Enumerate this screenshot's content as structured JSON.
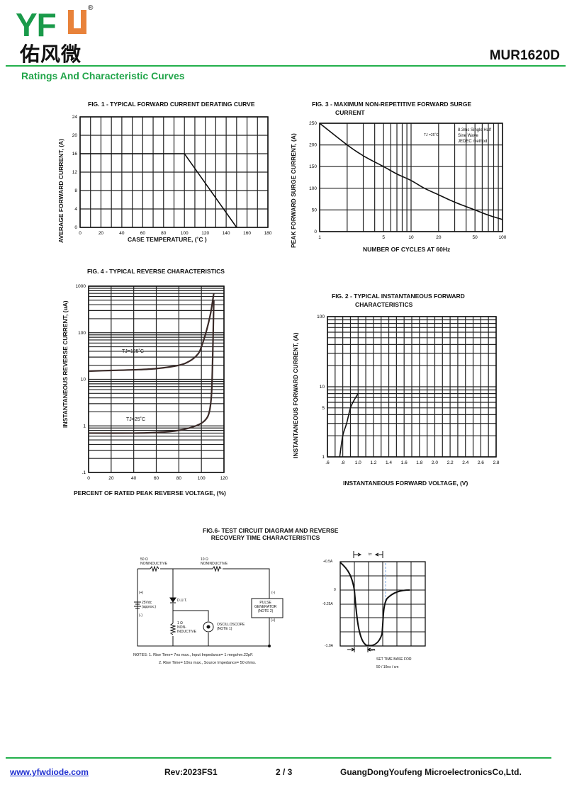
{
  "header": {
    "logo_text": "YFW",
    "logo_cn": "佑风微",
    "registered": "®",
    "part_number": "MUR1620D",
    "section_title": "Ratings And Characteristic Curves",
    "brand_colors": {
      "green": "#1a9a4a",
      "orange": "#e8823a",
      "rule": "#22b04b"
    }
  },
  "chart_data": [
    {
      "id": "fig1",
      "type": "line",
      "title": "FIG. 1 - TYPICAL FORWARD CURRENT DERATING CURVE",
      "xlabel": "CASE TEMPERATURE, (˚C )",
      "ylabel": "AVERAGE FORWARD CURRENT, (A)",
      "xlim": [
        0,
        180
      ],
      "ylim": [
        0,
        24
      ],
      "xscale": "linear",
      "yscale": "linear",
      "grid": true,
      "x_ticks": [
        "0",
        "20",
        "40",
        "60",
        "80",
        "100",
        "120",
        "140",
        "160",
        "180"
      ],
      "y_ticks": [
        "0",
        "4",
        "8",
        "12",
        "16",
        "20",
        "24"
      ],
      "series": [
        {
          "x": [
            0,
            100,
            150
          ],
          "y": [
            16,
            16,
            0
          ]
        }
      ]
    },
    {
      "id": "fig3",
      "type": "line",
      "title": "FIG. 3 - MAXIMUM NON-REPETITIVE FORWARD SURGE\n              CURRENT",
      "xlabel": "NUMBER OF CYCLES AT 60Hz",
      "ylabel": "PEAK FORWARD SURGE CURRENT, (A)",
      "xlim": [
        1,
        100
      ],
      "ylim": [
        0,
        250
      ],
      "xscale": "log",
      "yscale": "linear",
      "grid": true,
      "x_ticks": [
        "1",
        "5",
        "10",
        "20",
        "50",
        "100"
      ],
      "y_ticks": [
        "0",
        "50",
        "100",
        "150",
        "200",
        "250"
      ],
      "annotations": [
        "TJ =25˚C",
        "8.3ms Single Half\nSine Wave\nJEDEC method"
      ],
      "series": [
        {
          "x": [
            1,
            2,
            3,
            5,
            7,
            10,
            14,
            20,
            30,
            50,
            70,
            100
          ],
          "y": [
            250,
            200,
            175,
            150,
            133,
            118,
            100,
            85,
            68,
            50,
            38,
            28
          ]
        }
      ]
    },
    {
      "id": "fig4",
      "type": "line",
      "title": "FIG. 4 - TYPICAL REVERSE CHARACTERISTICS",
      "xlabel": "PERCENT OF RATED PEAK REVERSE VOLTAGE, (%)",
      "ylabel": "INSTANTANEOUS REVERSE CURRENT, (uA)",
      "xlim": [
        0,
        120
      ],
      "ylim": [
        0.1,
        1000
      ],
      "xscale": "linear",
      "yscale": "log",
      "grid": true,
      "x_ticks": [
        "0",
        "20",
        "40",
        "60",
        "80",
        "100",
        "120"
      ],
      "y_ticks": [
        ".1",
        "1",
        "10",
        "100",
        "1000"
      ],
      "series": [
        {
          "name": "TJ=125˚C",
          "x": [
            0,
            20,
            40,
            60,
            80,
            90,
            97,
            100,
            104,
            108,
            111
          ],
          "y": [
            15,
            15.5,
            16,
            17,
            20,
            25,
            35,
            50,
            100,
            250,
            700
          ]
        },
        {
          "name": "TJ=25˚C",
          "x": [
            0,
            40,
            60,
            80,
            95,
            103,
            107,
            109,
            110,
            111
          ],
          "y": [
            0.7,
            0.7,
            0.72,
            0.8,
            1.0,
            1.3,
            2,
            5,
            30,
            500
          ]
        }
      ]
    },
    {
      "id": "fig2",
      "type": "line",
      "title": "FIG. 2 - TYPICAL INSTANTANEOUS FORWARD\n              CHARACTERISTICS",
      "xlabel": "INSTANTANEOUS FORWARD VOLTAGE, (V)",
      "ylabel": "INSTANTANEOUS FORWARD CURRENT, (A)",
      "xlim": [
        0.6,
        2.8
      ],
      "ylim": [
        1,
        100
      ],
      "xscale": "linear",
      "yscale": "log",
      "grid": true,
      "x_ticks": [
        ".6",
        ".8",
        "1.0",
        "1.2",
        "1.4",
        "1.6",
        "1.8",
        "2.0",
        "2.2",
        "2.4",
        "2.6",
        "2.8"
      ],
      "y_ticks": [
        "1",
        "5",
        "10",
        "100"
      ],
      "series": [
        {
          "x": [
            0.76,
            0.8,
            0.85,
            0.9,
            0.95,
            1.0
          ],
          "y": [
            1,
            2,
            3,
            5,
            6.5,
            8
          ]
        }
      ]
    }
  ],
  "fig6": {
    "title": "FIG.6- TEST CIRCUIT DIAGRAM AND REVERSE\n     RECOVERY TIME CHARACTERISTICS",
    "r1": "50 Ω\nNONINDUCTIVE",
    "r2": "10 Ω\nNONINDUCTIVE",
    "source": "25Vdc\n(approx.)",
    "plus": "(+)",
    "minus": "(-)",
    "dut": "D.U.T.",
    "r3": "1 Ω\nNON-\nINDUCTIVE",
    "scope": "OSCILLOSCOPE\n(NOTE 1)",
    "pulse": "PULSE\nGENERATOR\n(NOTE 2)",
    "notes1": "NOTES: 1. Rise Time= 7ns max., Input Impedance= 1 megohm.22pF.",
    "notes2": "2. Rise Time= 10ns max., Source Impedance= 50 ohms.",
    "trr": "trr",
    "y_labels": [
      "+0.5A",
      "0",
      "-0.25A",
      "-1.0A"
    ],
    "one_cm": "1cm",
    "timebase": "SET TIME BASE FOR\n50 / 10ns / cm"
  },
  "footer": {
    "website": "www.yfwdiode.com",
    "revision": "Rev:2023FS1",
    "page": "2 / 3",
    "company": "GuangDongYoufeng MicroelectronicsCo,Ltd."
  }
}
